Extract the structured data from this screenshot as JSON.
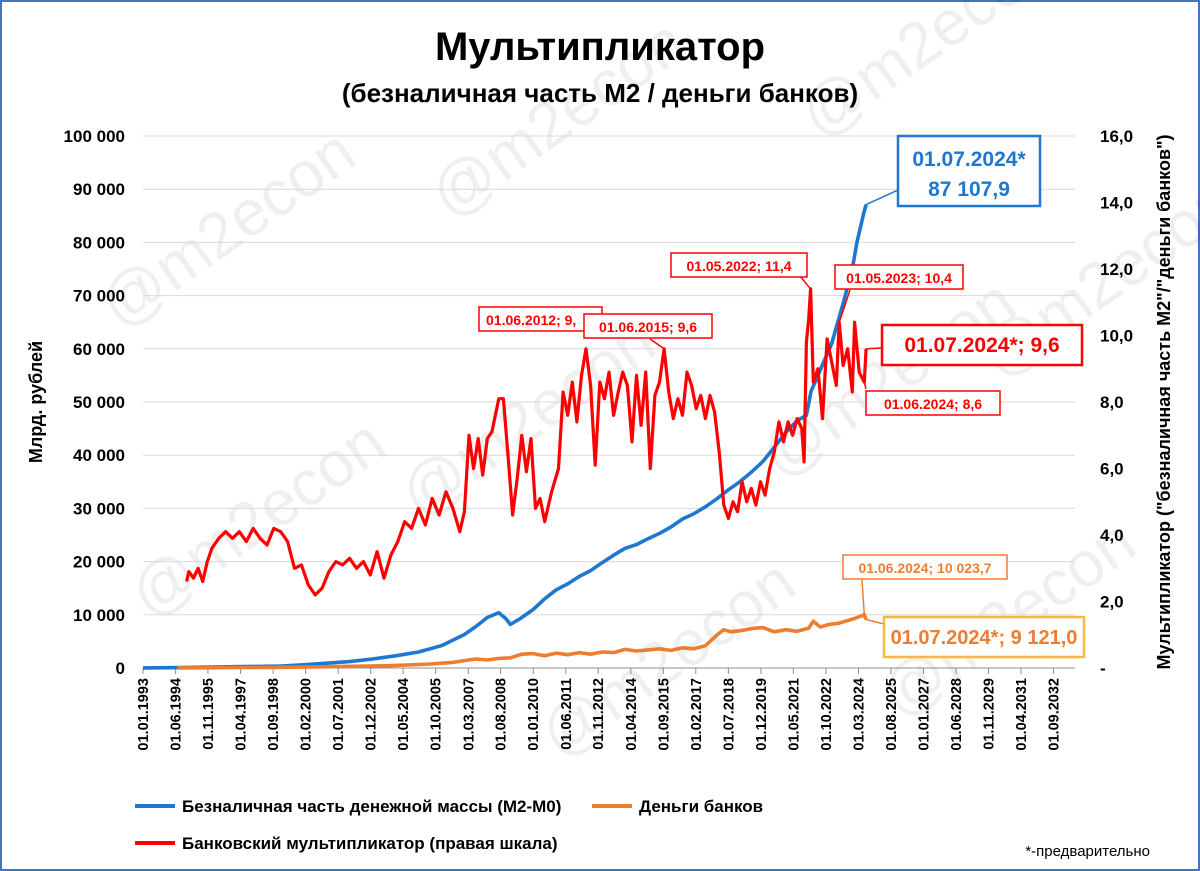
{
  "chart_data": {
    "type": "line",
    "title": "Мультипликатор",
    "subtitle": "(безналичная часть М2 / деньги банков)",
    "ylabel_left": "Млрд. рублей",
    "ylabel_right": "Мультипликатор (\"безналичная часть М2\"/\"деньги банков\")",
    "ylim_left": [
      0,
      100000
    ],
    "ylim_right": [
      0,
      16
    ],
    "yticks_left": [
      "0",
      "10 000",
      "20 000",
      "30 000",
      "40 000",
      "50 000",
      "60 000",
      "70 000",
      "80 000",
      "90 000",
      "100 000"
    ],
    "yticks_right": [
      "-",
      "2,0",
      "4,0",
      "6,0",
      "8,0",
      "10,0",
      "12,0",
      "14,0",
      "16,0"
    ],
    "xlim": [
      1993.0,
      2033.6
    ],
    "xticks": [
      {
        "label": "01.01.1993",
        "x": 1993.0
      },
      {
        "label": "01.06.1994",
        "x": 1994.42
      },
      {
        "label": "01.11.1995",
        "x": 1995.83
      },
      {
        "label": "01.04.1997",
        "x": 1997.25
      },
      {
        "label": "01.09.1998",
        "x": 1998.67
      },
      {
        "label": "01.02.2000",
        "x": 2000.08
      },
      {
        "label": "01.07.2001",
        "x": 2001.5
      },
      {
        "label": "01.12.2002",
        "x": 2002.92
      },
      {
        "label": "01.05.2004",
        "x": 2004.33
      },
      {
        "label": "01.10.2005",
        "x": 2005.75
      },
      {
        "label": "01.03.2007",
        "x": 2007.17
      },
      {
        "label": "01.08.2008",
        "x": 2008.58
      },
      {
        "label": "01.01.2010",
        "x": 2010.0
      },
      {
        "label": "01.06.2011",
        "x": 2011.42
      },
      {
        "label": "01.11.2012",
        "x": 2012.83
      },
      {
        "label": "01.04.2014",
        "x": 2014.25
      },
      {
        "label": "01.09.2015",
        "x": 2015.67
      },
      {
        "label": "01.02.2017",
        "x": 2017.08
      },
      {
        "label": "01.07.2018",
        "x": 2018.5
      },
      {
        "label": "01.12.2019",
        "x": 2019.92
      },
      {
        "label": "01.05.2021",
        "x": 2021.33
      },
      {
        "label": "01.10.2022",
        "x": 2022.75
      },
      {
        "label": "01.03.2024",
        "x": 2024.17
      },
      {
        "label": "01.08.2025",
        "x": 2025.58
      },
      {
        "label": "01.01.2027",
        "x": 2027.0
      },
      {
        "label": "01.06.2028",
        "x": 2028.42
      },
      {
        "label": "01.11.2029",
        "x": 2029.83
      },
      {
        "label": "01.04.2031",
        "x": 2031.25
      },
      {
        "label": "01.09.2032",
        "x": 2032.67
      }
    ],
    "series": [
      {
        "name": "Безналичная часть денежной массы (М2-М0)",
        "color": "#1f77d0",
        "axis": "left",
        "points": [
          [
            1993.0,
            20
          ],
          [
            1994.0,
            60
          ],
          [
            1995.0,
            120
          ],
          [
            1996.0,
            180
          ],
          [
            1997.0,
            250
          ],
          [
            1998.0,
            300
          ],
          [
            1999.0,
            380
          ],
          [
            2000.0,
            600
          ],
          [
            2001.0,
            900
          ],
          [
            2002.0,
            1200
          ],
          [
            2003.0,
            1700
          ],
          [
            2004.0,
            2300
          ],
          [
            2005.0,
            3000
          ],
          [
            2006.0,
            4200
          ],
          [
            2007.0,
            6300
          ],
          [
            2007.5,
            7800
          ],
          [
            2008.0,
            9500
          ],
          [
            2008.5,
            10400
          ],
          [
            2008.8,
            9300
          ],
          [
            2009.0,
            8200
          ],
          [
            2009.4,
            9200
          ],
          [
            2010.0,
            11000
          ],
          [
            2010.5,
            13000
          ],
          [
            2011.0,
            14700
          ],
          [
            2011.5,
            15800
          ],
          [
            2012.0,
            17200
          ],
          [
            2012.5,
            18300
          ],
          [
            2013.0,
            19800
          ],
          [
            2013.5,
            21200
          ],
          [
            2014.0,
            22500
          ],
          [
            2014.5,
            23200
          ],
          [
            2015.0,
            24300
          ],
          [
            2015.5,
            25300
          ],
          [
            2016.0,
            26500
          ],
          [
            2016.5,
            28000
          ],
          [
            2017.0,
            29000
          ],
          [
            2017.5,
            30300
          ],
          [
            2018.0,
            31800
          ],
          [
            2018.5,
            33500
          ],
          [
            2019.0,
            35000
          ],
          [
            2019.5,
            36800
          ],
          [
            2020.0,
            38800
          ],
          [
            2020.5,
            41500
          ],
          [
            2021.0,
            44300
          ],
          [
            2021.5,
            46500
          ],
          [
            2021.9,
            47500
          ],
          [
            2022.1,
            52000
          ],
          [
            2022.5,
            56000
          ],
          [
            2023.0,
            61000
          ],
          [
            2023.5,
            68500
          ],
          [
            2023.9,
            75000
          ],
          [
            2024.1,
            80000
          ],
          [
            2024.4,
            85500
          ],
          [
            2024.5,
            87107.9
          ]
        ]
      },
      {
        "name": "Деньги банков",
        "color": "#ed7d31",
        "axis": "left",
        "points": [
          [
            1994.5,
            10
          ],
          [
            1995.5,
            40
          ],
          [
            1996.5,
            70
          ],
          [
            1997.5,
            90
          ],
          [
            1998.5,
            110
          ],
          [
            1999.5,
            150
          ],
          [
            2000.5,
            200
          ],
          [
            2001.5,
            260
          ],
          [
            2002.5,
            330
          ],
          [
            2003.5,
            420
          ],
          [
            2004.5,
            560
          ],
          [
            2005.5,
            760
          ],
          [
            2006.5,
            1050
          ],
          [
            2007.0,
            1400
          ],
          [
            2007.5,
            1700
          ],
          [
            2008.0,
            1500
          ],
          [
            2008.5,
            1800
          ],
          [
            2009.0,
            1900
          ],
          [
            2009.5,
            2600
          ],
          [
            2010.0,
            2700
          ],
          [
            2010.5,
            2300
          ],
          [
            2011.0,
            2800
          ],
          [
            2011.5,
            2500
          ],
          [
            2012.0,
            2900
          ],
          [
            2012.5,
            2600
          ],
          [
            2013.0,
            3000
          ],
          [
            2013.5,
            2900
          ],
          [
            2014.0,
            3500
          ],
          [
            2014.5,
            3200
          ],
          [
            2015.0,
            3400
          ],
          [
            2015.5,
            3600
          ],
          [
            2016.0,
            3300
          ],
          [
            2016.5,
            3800
          ],
          [
            2017.0,
            3600
          ],
          [
            2017.5,
            4200
          ],
          [
            2018.0,
            6200
          ],
          [
            2018.3,
            7200
          ],
          [
            2018.6,
            6800
          ],
          [
            2019.0,
            7000
          ],
          [
            2019.5,
            7400
          ],
          [
            2020.0,
            7600
          ],
          [
            2020.5,
            6800
          ],
          [
            2021.0,
            7200
          ],
          [
            2021.5,
            6900
          ],
          [
            2022.0,
            7500
          ],
          [
            2022.2,
            8800
          ],
          [
            2022.5,
            7700
          ],
          [
            2022.9,
            8200
          ],
          [
            2023.3,
            8400
          ],
          [
            2023.6,
            8800
          ],
          [
            2024.0,
            9300
          ],
          [
            2024.42,
            10023.7
          ],
          [
            2024.5,
            9121.0
          ]
        ]
      },
      {
        "name": "Банковский мультипликатор (правая шкала)",
        "color": "#ff0000",
        "axis": "right",
        "points": [
          [
            1994.9,
            2.6
          ],
          [
            1995.0,
            2.9
          ],
          [
            1995.2,
            2.7
          ],
          [
            1995.4,
            3.0
          ],
          [
            1995.6,
            2.6
          ],
          [
            1995.8,
            3.2
          ],
          [
            1996.0,
            3.6
          ],
          [
            1996.3,
            3.9
          ],
          [
            1996.6,
            4.1
          ],
          [
            1996.9,
            3.9
          ],
          [
            1997.2,
            4.1
          ],
          [
            1997.5,
            3.8
          ],
          [
            1997.8,
            4.2
          ],
          [
            1998.1,
            3.9
          ],
          [
            1998.4,
            3.7
          ],
          [
            1998.7,
            4.2
          ],
          [
            1999.0,
            4.1
          ],
          [
            1999.3,
            3.8
          ],
          [
            1999.6,
            3.0
          ],
          [
            1999.9,
            3.1
          ],
          [
            2000.2,
            2.5
          ],
          [
            2000.5,
            2.2
          ],
          [
            2000.8,
            2.4
          ],
          [
            2001.1,
            2.9
          ],
          [
            2001.4,
            3.2
          ],
          [
            2001.7,
            3.1
          ],
          [
            2002.0,
            3.3
          ],
          [
            2002.3,
            3.0
          ],
          [
            2002.6,
            3.2
          ],
          [
            2002.9,
            2.8
          ],
          [
            2003.2,
            3.5
          ],
          [
            2003.5,
            2.7
          ],
          [
            2003.8,
            3.4
          ],
          [
            2004.1,
            3.8
          ],
          [
            2004.4,
            4.4
          ],
          [
            2004.7,
            4.2
          ],
          [
            2005.0,
            4.8
          ],
          [
            2005.3,
            4.3
          ],
          [
            2005.6,
            5.1
          ],
          [
            2005.9,
            4.6
          ],
          [
            2006.2,
            5.3
          ],
          [
            2006.5,
            4.8
          ],
          [
            2006.8,
            4.1
          ],
          [
            2007.0,
            4.7
          ],
          [
            2007.2,
            7.0
          ],
          [
            2007.4,
            6.0
          ],
          [
            2007.6,
            6.9
          ],
          [
            2007.8,
            5.8
          ],
          [
            2008.0,
            6.9
          ],
          [
            2008.2,
            7.1
          ],
          [
            2008.5,
            8.1
          ],
          [
            2008.7,
            8.1
          ],
          [
            2008.9,
            6.4
          ],
          [
            2009.1,
            4.6
          ],
          [
            2009.3,
            5.7
          ],
          [
            2009.5,
            7.0
          ],
          [
            2009.7,
            5.9
          ],
          [
            2009.9,
            6.9
          ],
          [
            2010.1,
            4.8
          ],
          [
            2010.3,
            5.1
          ],
          [
            2010.5,
            4.4
          ],
          [
            2010.8,
            5.3
          ],
          [
            2011.1,
            6.0
          ],
          [
            2011.3,
            8.3
          ],
          [
            2011.5,
            7.6
          ],
          [
            2011.7,
            8.6
          ],
          [
            2011.9,
            7.4
          ],
          [
            2012.1,
            8.8
          ],
          [
            2012.3,
            9.6
          ],
          [
            2012.5,
            8.5
          ],
          [
            2012.7,
            6.1
          ],
          [
            2012.9,
            8.6
          ],
          [
            2013.1,
            8.1
          ],
          [
            2013.3,
            8.9
          ],
          [
            2013.5,
            7.6
          ],
          [
            2013.7,
            8.3
          ],
          [
            2013.9,
            8.9
          ],
          [
            2014.1,
            8.5
          ],
          [
            2014.3,
            6.8
          ],
          [
            2014.5,
            8.8
          ],
          [
            2014.7,
            7.3
          ],
          [
            2014.9,
            8.9
          ],
          [
            2015.1,
            6.0
          ],
          [
            2015.3,
            8.2
          ],
          [
            2015.5,
            8.6
          ],
          [
            2015.7,
            9.6
          ],
          [
            2015.9,
            8.3
          ],
          [
            2016.1,
            7.5
          ],
          [
            2016.3,
            8.1
          ],
          [
            2016.5,
            7.6
          ],
          [
            2016.7,
            8.9
          ],
          [
            2016.9,
            8.5
          ],
          [
            2017.1,
            7.8
          ],
          [
            2017.3,
            8.2
          ],
          [
            2017.5,
            7.5
          ],
          [
            2017.7,
            8.2
          ],
          [
            2017.9,
            7.7
          ],
          [
            2018.1,
            6.5
          ],
          [
            2018.3,
            4.9
          ],
          [
            2018.5,
            4.5
          ],
          [
            2018.7,
            5.0
          ],
          [
            2018.9,
            4.7
          ],
          [
            2019.1,
            5.6
          ],
          [
            2019.3,
            5.0
          ],
          [
            2019.5,
            5.4
          ],
          [
            2019.7,
            4.9
          ],
          [
            2019.9,
            5.6
          ],
          [
            2020.1,
            5.2
          ],
          [
            2020.3,
            6.0
          ],
          [
            2020.5,
            6.5
          ],
          [
            2020.7,
            7.4
          ],
          [
            2020.9,
            6.8
          ],
          [
            2021.1,
            7.4
          ],
          [
            2021.3,
            7.0
          ],
          [
            2021.5,
            7.5
          ],
          [
            2021.7,
            7.2
          ],
          [
            2021.8,
            6.2
          ],
          [
            2021.9,
            9.8
          ],
          [
            2022.0,
            10.5
          ],
          [
            2022.08,
            11.4
          ],
          [
            2022.2,
            8.6
          ],
          [
            2022.4,
            9.0
          ],
          [
            2022.6,
            7.5
          ],
          [
            2022.8,
            9.9
          ],
          [
            2023.0,
            9.2
          ],
          [
            2023.2,
            8.5
          ],
          [
            2023.33,
            10.4
          ],
          [
            2023.5,
            9.1
          ],
          [
            2023.7,
            9.6
          ],
          [
            2023.9,
            8.3
          ],
          [
            2024.0,
            10.4
          ],
          [
            2024.2,
            8.9
          ],
          [
            2024.42,
            8.6
          ],
          [
            2024.5,
            9.6
          ]
        ]
      }
    ],
    "annotations": [
      {
        "text": "01.07.2024*\n87 107,9",
        "line1": "01.07.2024*",
        "line2": "87 107,9",
        "color": "#1f77d0"
      },
      {
        "text": "01.05.2022;  11,4",
        "color": "#ff0000"
      },
      {
        "text": "01.05.2023;  10,4",
        "color": "#ff0000"
      },
      {
        "text": "01.06.2012;  9,",
        "color": "#ff0000"
      },
      {
        "text": "01.06.2015;  9,6",
        "color": "#ff0000"
      },
      {
        "text": "01.07.2024*;   9,6",
        "color": "#ff0000"
      },
      {
        "text": "01.06.2024;   8,6",
        "color": "#ff0000"
      },
      {
        "text": "01.06.2024;  10 023,7",
        "color": "#ed7d31"
      },
      {
        "text": "01.07.2024*;  9 121,0",
        "color": "#ed7d31"
      }
    ],
    "legend": [
      {
        "label": "Безналичная часть денежной массы (М2-М0)",
        "color": "#1f77d0"
      },
      {
        "label": "Деньги банков",
        "color": "#ed7d31"
      },
      {
        "label": "Банковский мультипликатор (правая шкала)",
        "color": "#ff0000"
      }
    ],
    "legend_position": "bottom",
    "grid": "horizontal",
    "footnote": "*-предварительно",
    "watermark": "@m2econ"
  }
}
